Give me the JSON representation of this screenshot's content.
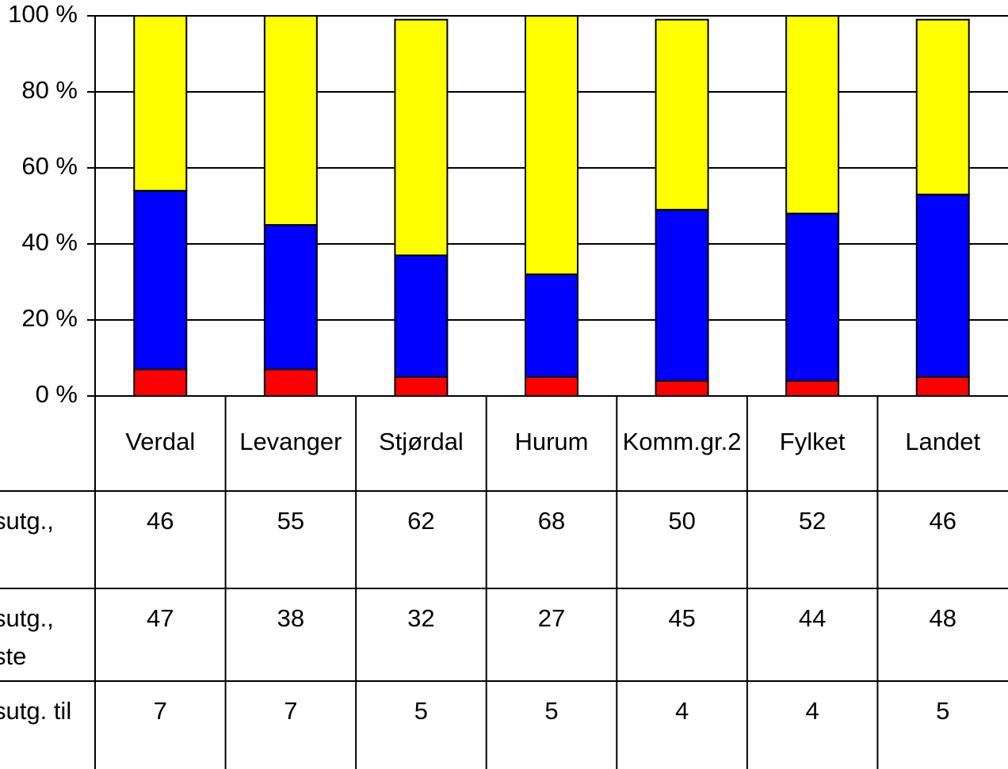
{
  "chart_data": {
    "type": "stacked_bar_100",
    "categories": [
      "Verdal",
      "Levanger",
      "Stjørdal",
      "Hurum",
      "Komm.gr.2",
      "Fylket",
      "Landet"
    ],
    "series": [
      {
        "name": "sutg.,",
        "color": "#ffff00",
        "values": [
          46,
          55,
          62,
          68,
          50,
          52,
          46
        ]
      },
      {
        "name": "sutg.,\nste",
        "color": "#0000ff",
        "values": [
          47,
          38,
          32,
          27,
          45,
          44,
          48
        ]
      },
      {
        "name": "sutg. til",
        "color": "#ff0000",
        "values": [
          7,
          7,
          5,
          5,
          4,
          4,
          5
        ]
      }
    ],
    "ylim": [
      0,
      100
    ],
    "yticks": [
      {
        "value": 0,
        "label": "0 %"
      },
      {
        "value": 20,
        "label": "20 %"
      },
      {
        "value": 40,
        "label": "40 %"
      },
      {
        "value": 60,
        "label": "60 %"
      },
      {
        "value": 80,
        "label": "80 %"
      },
      {
        "value": 100,
        "label": "100 %"
      }
    ],
    "grid": true
  }
}
